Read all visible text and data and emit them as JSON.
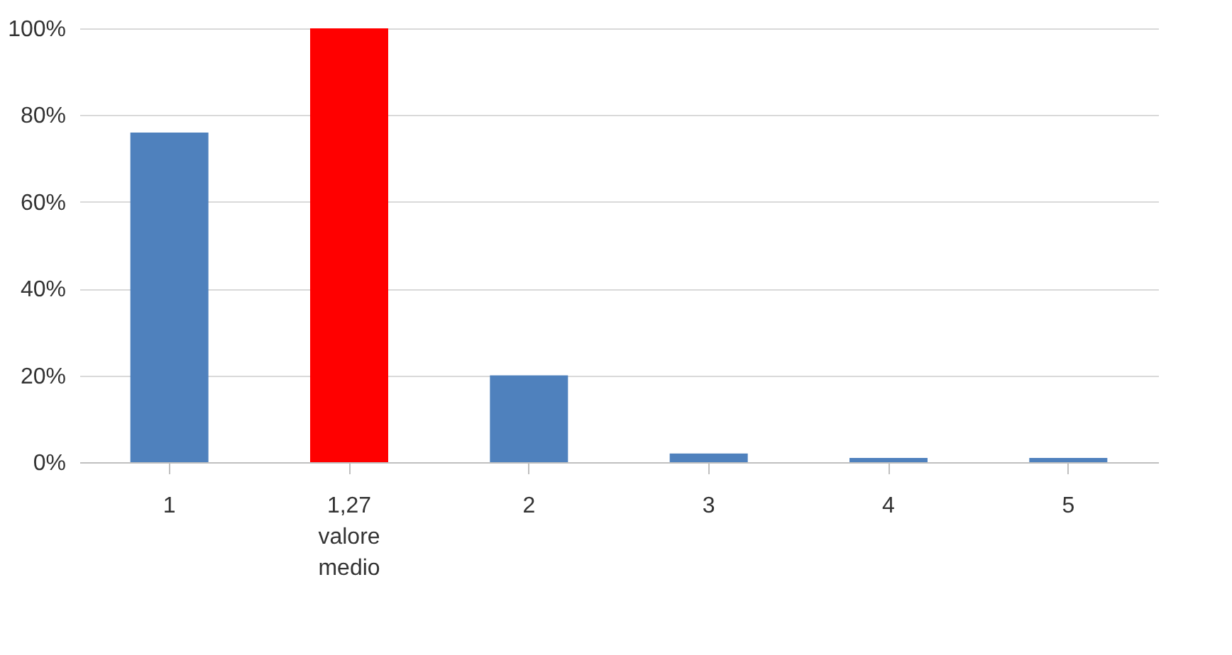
{
  "chart_data": {
    "type": "bar",
    "categories": [
      "1",
      "1,27 valore medio",
      "2",
      "3",
      "4",
      "5"
    ],
    "values": [
      76,
      100,
      20,
      2,
      1,
      1
    ],
    "colors": [
      "#4f81bd",
      "#ff0000",
      "#4f81bd",
      "#4f81bd",
      "#4f81bd",
      "#4f81bd"
    ],
    "ylim": [
      0,
      100
    ],
    "yticks": [
      {
        "value": 0,
        "label": "0%"
      },
      {
        "value": 20,
        "label": "20%"
      },
      {
        "value": 40,
        "label": "40%"
      },
      {
        "value": 60,
        "label": "60%"
      },
      {
        "value": 80,
        "label": "80%"
      },
      {
        "value": 100,
        "label": "100%"
      }
    ],
    "grid": "y"
  }
}
